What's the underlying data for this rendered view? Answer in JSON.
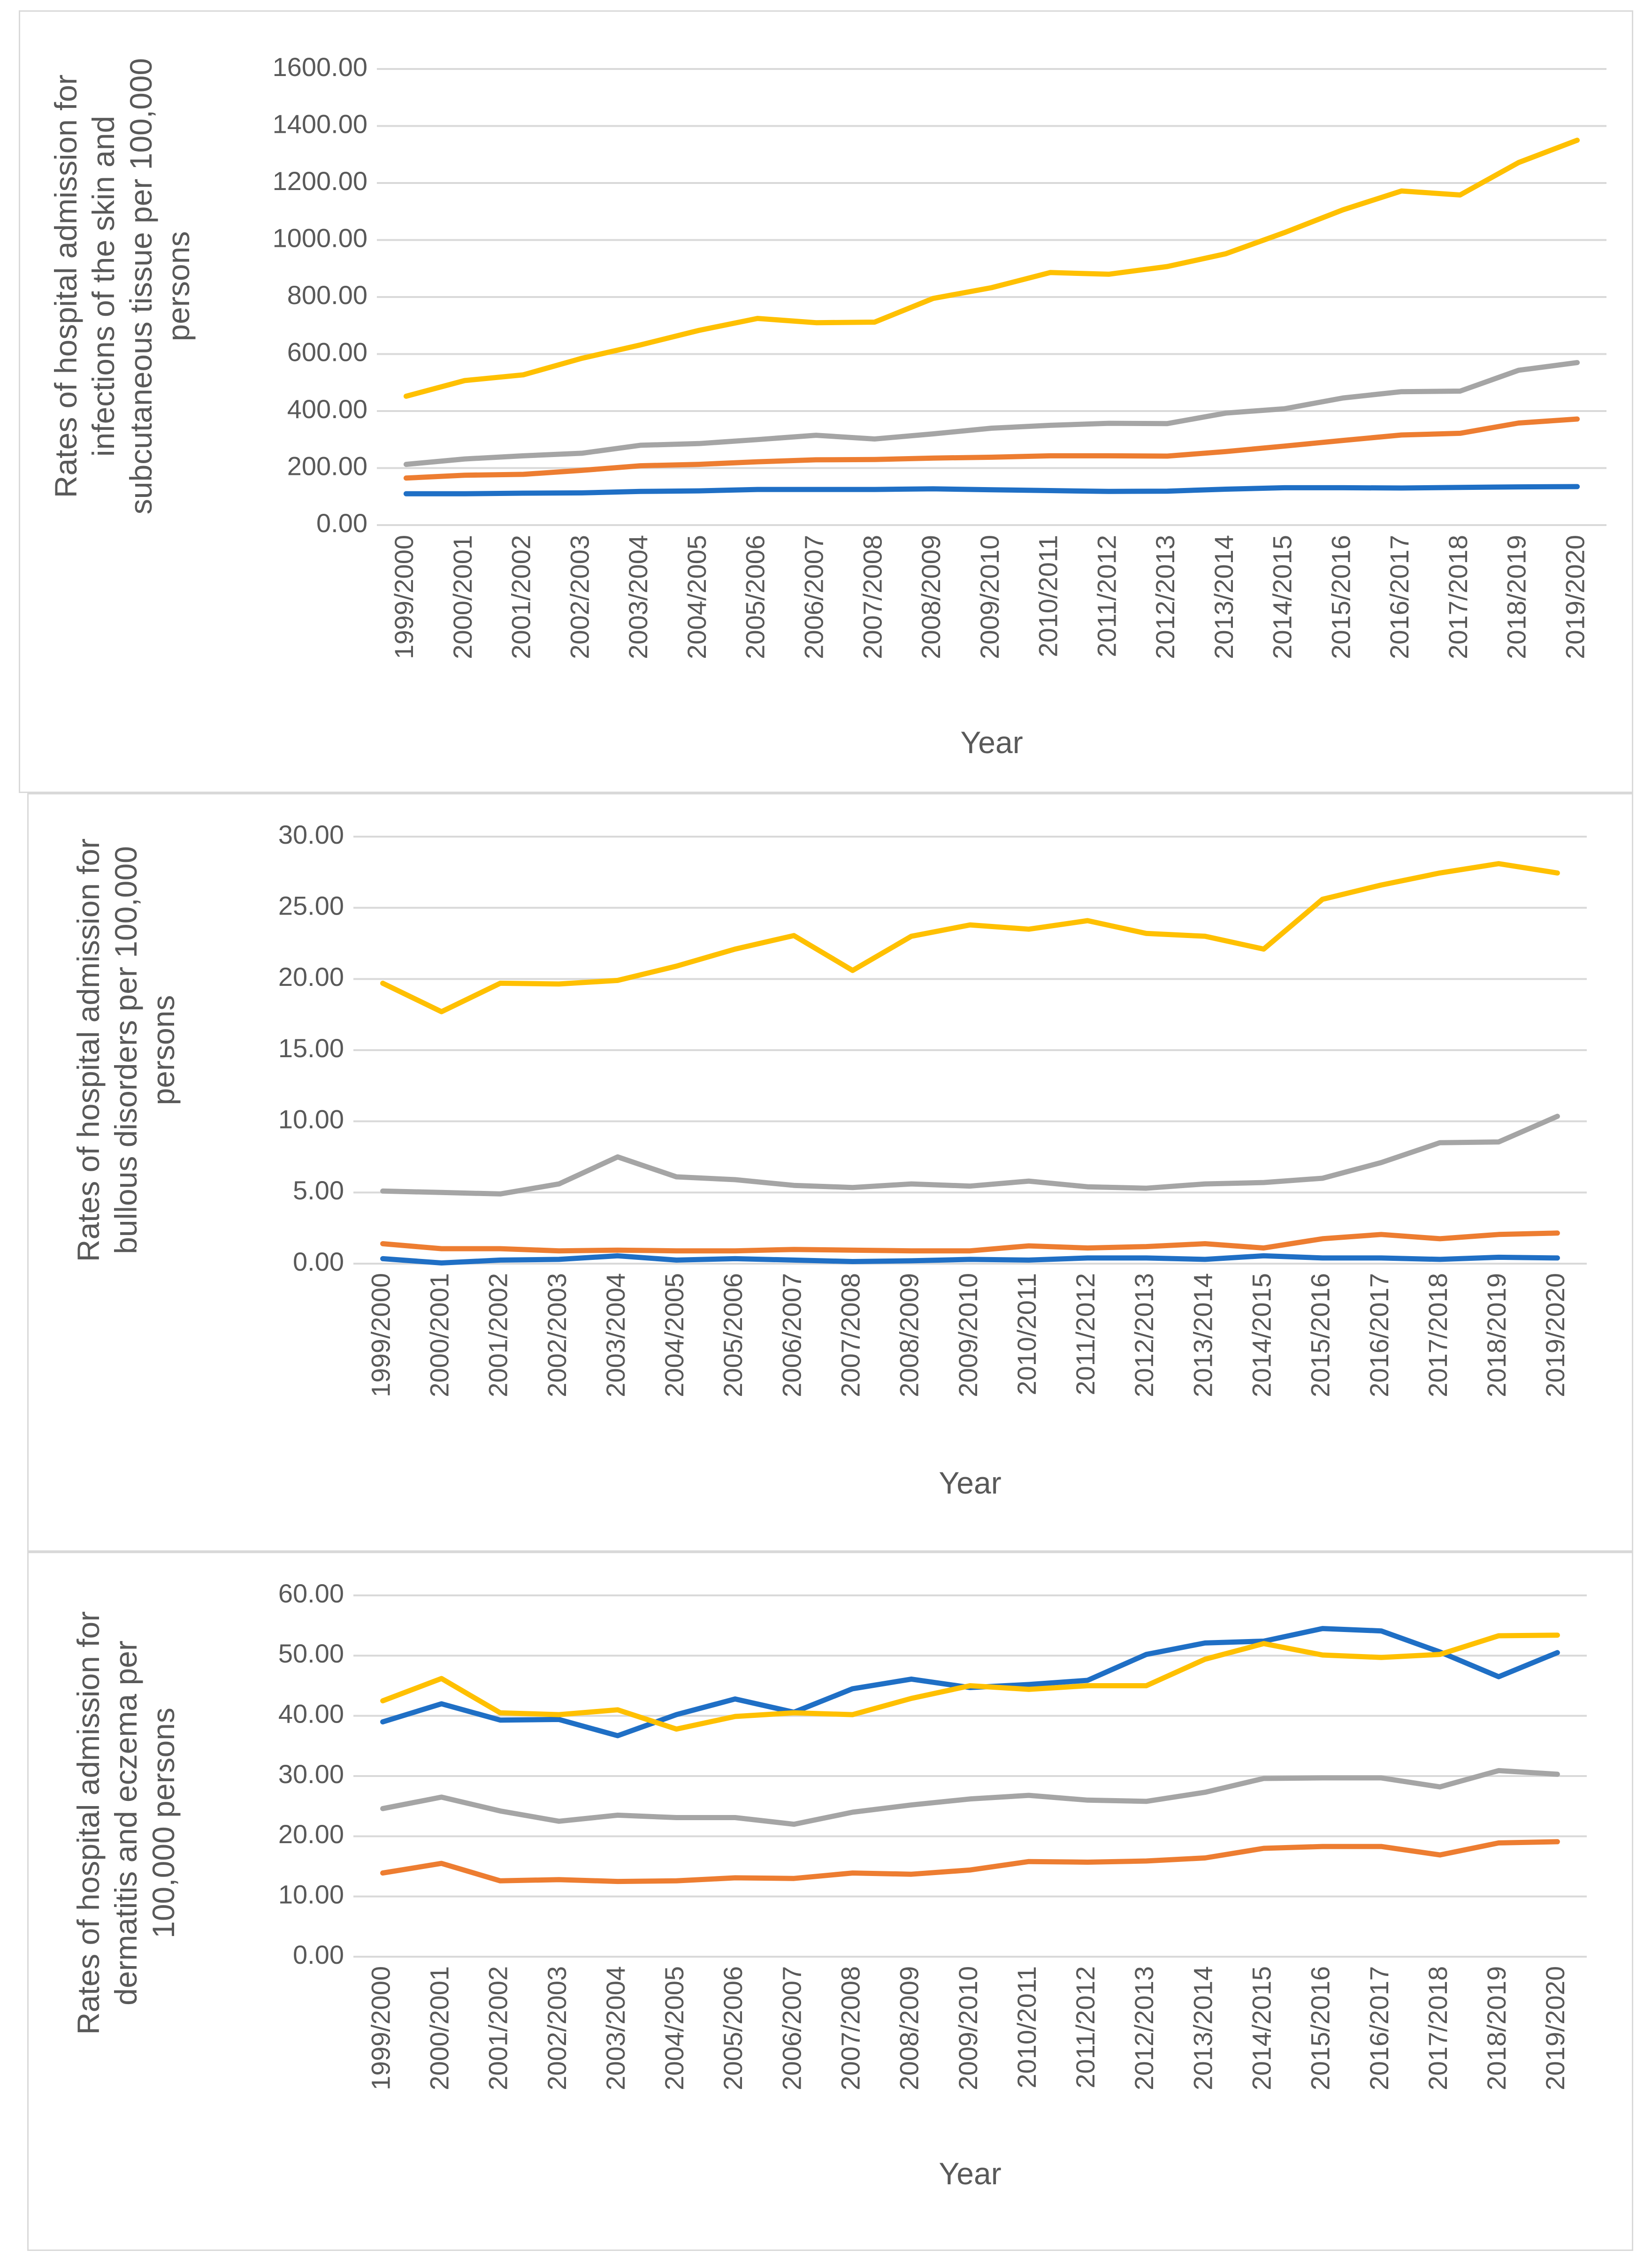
{
  "chart_data": [
    {
      "type": "line",
      "title": "",
      "xlabel": "Year",
      "ylabel": [
        "Rates of hospital admission for",
        "infections of the skin and",
        "subcutaneous tissue per 100,000",
        "persons"
      ],
      "ylim": [
        0,
        1600
      ],
      "yticks": [
        "0.00",
        "200.00",
        "400.00",
        "600.00",
        "800.00",
        "1000.00",
        "1200.00",
        "1400.00",
        "1600.00"
      ],
      "categories": [
        "1999/2000",
        "2000/2001",
        "2001/2002",
        "2002/2003",
        "2003/2004",
        "2004/2005",
        "2005/2006",
        "2006/2007",
        "2007/2008",
        "2008/2009",
        "2009/2010",
        "2010/2011",
        "2011/2012",
        "2012/2013",
        "2013/2014",
        "2014/2015",
        "2015/2016",
        "2016/2017",
        "2017/2018",
        "2018/2019",
        "2019/2020"
      ],
      "series": [
        {
          "name": "blue series",
          "color": "#1f6fc5",
          "values": [
            110,
            110,
            112,
            113,
            118,
            120,
            125,
            125,
            125,
            127,
            124,
            121,
            118,
            119,
            126,
            131,
            131,
            130,
            132,
            134,
            135
          ]
        },
        {
          "name": "orange series",
          "color": "#ed7d31",
          "values": [
            165,
            175,
            178,
            192,
            208,
            213,
            222,
            229,
            230,
            235,
            238,
            243,
            243,
            242,
            258,
            277,
            297,
            316,
            322,
            358,
            372
          ]
        },
        {
          "name": "gray series",
          "color": "#a5a5a5",
          "values": [
            213,
            232,
            243,
            252,
            280,
            286,
            300,
            315,
            302,
            320,
            340,
            350,
            357,
            356,
            393,
            408,
            446,
            468,
            470,
            543,
            570
          ]
        },
        {
          "name": "yellow series",
          "color": "#ffc000",
          "values": [
            452,
            507,
            527,
            585,
            632,
            683,
            725,
            710,
            712,
            795,
            833,
            886,
            880,
            907,
            952,
            1026,
            1106,
            1172,
            1158,
            1272,
            1350
          ]
        }
      ]
    },
    {
      "type": "line",
      "title": "",
      "xlabel": "Year",
      "ylabel": [
        "Rates of hospital admission for",
        "bullous disorders per 100,000",
        "persons"
      ],
      "ylim": [
        0,
        30
      ],
      "yticks": [
        "0.00",
        "5.00",
        "10.00",
        "15.00",
        "20.00",
        "25.00",
        "30.00"
      ],
      "categories": [
        "1999/2000",
        "2000/2001",
        "2001/2002",
        "2002/2003",
        "2003/2004",
        "2004/2005",
        "2005/2006",
        "2006/2007",
        "2007/2008",
        "2008/2009",
        "2009/2010",
        "2010/2011",
        "2011/2012",
        "2012/2013",
        "2013/2014",
        "2014/2015",
        "2015/2016",
        "2016/2017",
        "2017/2018",
        "2018/2019",
        "2019/2020"
      ],
      "series": [
        {
          "name": "blue series",
          "color": "#1f6fc5",
          "values": [
            0.35,
            0.05,
            0.25,
            0.3,
            0.55,
            0.25,
            0.35,
            0.25,
            0.15,
            0.2,
            0.3,
            0.25,
            0.4,
            0.4,
            0.3,
            0.55,
            0.4,
            0.4,
            0.3,
            0.45,
            0.4
          ]
        },
        {
          "name": "orange series",
          "color": "#ed7d31",
          "values": [
            1.4,
            1.05,
            1.05,
            0.9,
            0.95,
            0.9,
            0.9,
            1.0,
            0.95,
            0.9,
            0.9,
            1.25,
            1.1,
            1.2,
            1.4,
            1.1,
            1.75,
            2.05,
            1.75,
            2.05,
            2.15
          ]
        },
        {
          "name": "gray series",
          "color": "#a5a5a5",
          "values": [
            5.1,
            5.0,
            4.9,
            5.6,
            7.5,
            6.1,
            5.9,
            5.5,
            5.35,
            5.6,
            5.45,
            5.8,
            5.4,
            5.3,
            5.6,
            5.7,
            6.0,
            7.1,
            8.5,
            8.55,
            10.35
          ]
        },
        {
          "name": "yellow series",
          "color": "#ffc000",
          "values": [
            19.7,
            17.7,
            19.7,
            19.65,
            19.9,
            20.9,
            22.1,
            23.05,
            20.6,
            23.0,
            23.8,
            23.5,
            24.1,
            23.2,
            23.0,
            22.1,
            25.6,
            26.6,
            27.45,
            28.1,
            27.45
          ]
        }
      ]
    },
    {
      "type": "line",
      "title": "",
      "xlabel": "Year",
      "ylabel": [
        "Rates of hospital admission for",
        "dermatitis and eczema per",
        "100,000 persons"
      ],
      "ylim": [
        0,
        60
      ],
      "yticks": [
        "0.00",
        "10.00",
        "20.00",
        "30.00",
        "40.00",
        "50.00",
        "60.00"
      ],
      "categories": [
        "1999/2000",
        "2000/2001",
        "2001/2002",
        "2002/2003",
        "2003/2004",
        "2004/2005",
        "2005/2006",
        "2006/2007",
        "2007/2008",
        "2008/2009",
        "2009/2010",
        "2010/2011",
        "2011/2012",
        "2012/2013",
        "2013/2014",
        "2014/2015",
        "2015/2016",
        "2016/2017",
        "2017/2018",
        "2018/2019",
        "2019/2020"
      ],
      "series": [
        {
          "name": "blue series",
          "color": "#1f6fc5",
          "values": [
            39.0,
            42.0,
            39.3,
            39.4,
            36.7,
            40.2,
            42.8,
            40.6,
            44.5,
            46.1,
            44.7,
            45.2,
            45.9,
            50.2,
            52.1,
            52.4,
            54.5,
            54.1,
            50.6,
            46.5,
            50.5
          ]
        },
        {
          "name": "orange series",
          "color": "#ed7d31",
          "values": [
            13.9,
            15.5,
            12.6,
            12.8,
            12.5,
            12.6,
            13.1,
            13.0,
            13.9,
            13.7,
            14.4,
            15.8,
            15.7,
            15.9,
            16.4,
            18.0,
            18.3,
            18.3,
            16.9,
            18.9,
            19.1
          ]
        },
        {
          "name": "gray series",
          "color": "#a5a5a5",
          "values": [
            24.6,
            26.5,
            24.2,
            22.5,
            23.5,
            23.1,
            23.1,
            22.0,
            24.0,
            25.2,
            26.2,
            26.8,
            26.0,
            25.8,
            27.3,
            29.6,
            29.7,
            29.7,
            28.2,
            30.9,
            30.3
          ]
        },
        {
          "name": "yellow series",
          "color": "#ffc000",
          "values": [
            42.5,
            46.2,
            40.5,
            40.2,
            41.0,
            37.8,
            39.9,
            40.5,
            40.2,
            42.9,
            45.0,
            44.4,
            45.0,
            45.0,
            49.4,
            52.0,
            50.1,
            49.7,
            50.2,
            53.3,
            53.4
          ]
        }
      ]
    }
  ]
}
